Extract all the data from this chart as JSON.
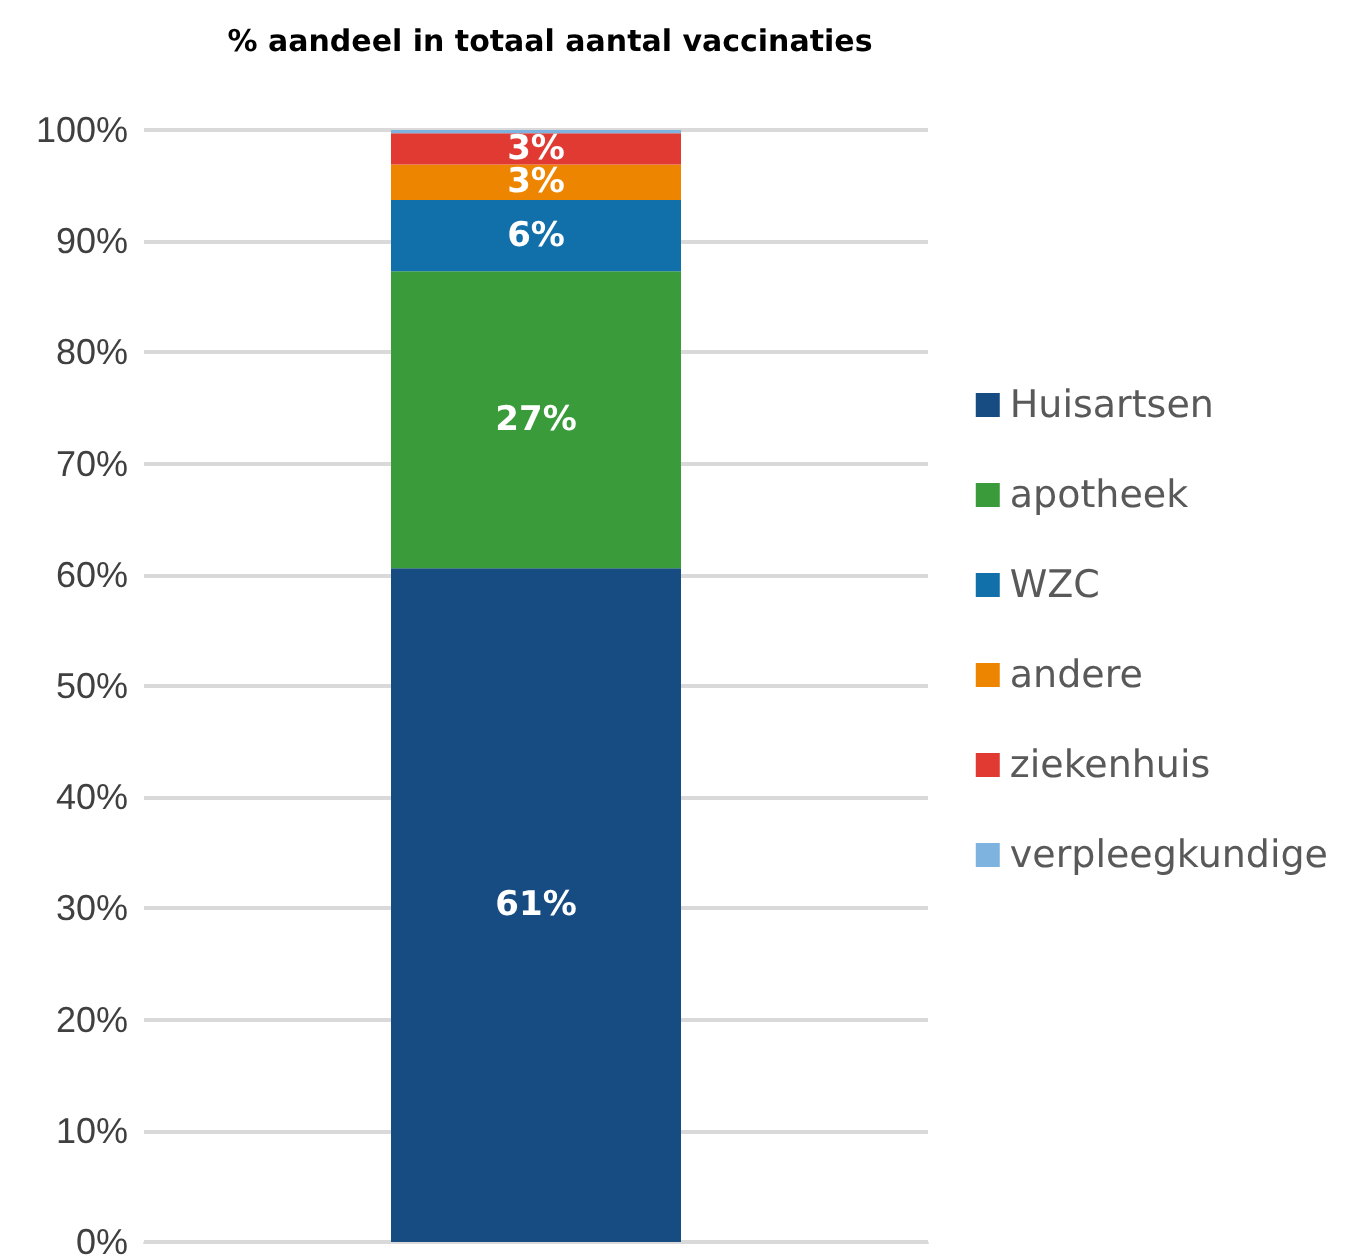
{
  "chart_data": {
    "type": "bar",
    "title": "% aandeel in totaal aantal vaccinaties",
    "categories": [
      null
    ],
    "stacked": true,
    "ylim": [
      0,
      100
    ],
    "yticks": [
      {
        "value": 0,
        "label": "0%"
      },
      {
        "value": 10,
        "label": "10%"
      },
      {
        "value": 20,
        "label": "20%"
      },
      {
        "value": 30,
        "label": "30%"
      },
      {
        "value": 40,
        "label": "40%"
      },
      {
        "value": 50,
        "label": "50%"
      },
      {
        "value": 60,
        "label": "60%"
      },
      {
        "value": 70,
        "label": "70%"
      },
      {
        "value": 80,
        "label": "80%"
      },
      {
        "value": 90,
        "label": "90%"
      },
      {
        "value": 100,
        "label": "100%"
      }
    ],
    "grid": "y",
    "legend": "right",
    "series": [
      {
        "name": "Huisartsen",
        "color": "#174c82",
        "values": [
          60.6
        ],
        "value_labels": [
          "61%"
        ]
      },
      {
        "name": "apotheek",
        "color": "#3a9b3a",
        "values": [
          26.7
        ],
        "value_labels": [
          "27%"
        ]
      },
      {
        "name": "WZC",
        "color": "#1170aa",
        "values": [
          6.4
        ],
        "value_labels": [
          "6%"
        ]
      },
      {
        "name": "andere",
        "color": "#ee8500",
        "values": [
          3.2
        ],
        "value_labels": [
          "3%"
        ]
      },
      {
        "name": "ziekenhuis",
        "color": "#e03a32",
        "values": [
          2.8
        ],
        "value_labels": [
          "3%"
        ]
      },
      {
        "name": "verpleegkundige",
        "color": "#7eb3e0",
        "values": [
          0.3
        ],
        "value_labels": [
          null
        ]
      }
    ]
  }
}
